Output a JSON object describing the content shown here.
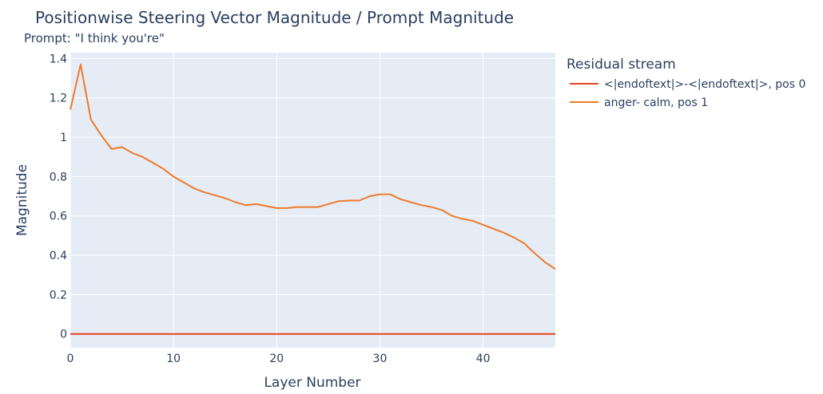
{
  "chart_data": {
    "type": "line",
    "title": "Positionwise Steering Vector Magnitude / Prompt Magnitude",
    "subtitle": "Prompt: \"I think you're\"",
    "xlabel": "Layer Number",
    "ylabel": "Magnitude",
    "xlim": [
      0,
      47
    ],
    "ylim": [
      -0.07,
      1.43
    ],
    "x_ticks": [
      0,
      10,
      20,
      30,
      40
    ],
    "y_ticks": [
      0,
      0.2,
      0.4,
      0.6,
      0.8,
      1,
      1.2,
      1.4
    ],
    "x_tick_labels": [
      "0",
      "10",
      "20",
      "30",
      "40"
    ],
    "y_tick_labels": [
      "0",
      "0.2",
      "0.4",
      "0.6",
      "0.8",
      "1",
      "1.2",
      "1.4"
    ],
    "grid": true,
    "legend": {
      "title": "Residual stream",
      "placement": "right"
    },
    "series": [
      {
        "name": "<|endoftext|>-<|endoftext|>, pos 0",
        "color": "#e3441f",
        "x": [
          0,
          1,
          2,
          3,
          4,
          5,
          6,
          7,
          8,
          9,
          10,
          11,
          12,
          13,
          14,
          15,
          16,
          17,
          18,
          19,
          20,
          21,
          22,
          23,
          24,
          25,
          26,
          27,
          28,
          29,
          30,
          31,
          32,
          33,
          34,
          35,
          36,
          37,
          38,
          39,
          40,
          41,
          42,
          43,
          44,
          45,
          46,
          47
        ],
        "values": [
          0,
          0,
          0,
          0,
          0,
          0,
          0,
          0,
          0,
          0,
          0,
          0,
          0,
          0,
          0,
          0,
          0,
          0,
          0,
          0,
          0,
          0,
          0,
          0,
          0,
          0,
          0,
          0,
          0,
          0,
          0,
          0,
          0,
          0,
          0,
          0,
          0,
          0,
          0,
          0,
          0,
          0,
          0,
          0,
          0,
          0,
          0,
          0
        ]
      },
      {
        "name": " anger- calm, pos 1",
        "color": "#f07a2a",
        "x": [
          0,
          1,
          2,
          3,
          4,
          5,
          6,
          7,
          8,
          9,
          10,
          11,
          12,
          13,
          14,
          15,
          16,
          17,
          18,
          19,
          20,
          21,
          22,
          23,
          24,
          25,
          26,
          27,
          28,
          29,
          30,
          31,
          32,
          33,
          34,
          35,
          36,
          37,
          38,
          39,
          40,
          41,
          42,
          43,
          44,
          45,
          46,
          47
        ],
        "values": [
          1.14,
          1.37,
          1.09,
          1.01,
          0.94,
          0.95,
          0.92,
          0.9,
          0.87,
          0.84,
          0.8,
          0.77,
          0.74,
          0.72,
          0.705,
          0.69,
          0.67,
          0.655,
          0.66,
          0.65,
          0.64,
          0.64,
          0.645,
          0.645,
          0.645,
          0.66,
          0.675,
          0.678,
          0.678,
          0.7,
          0.71,
          0.71,
          0.685,
          0.67,
          0.655,
          0.645,
          0.63,
          0.6,
          0.585,
          0.575,
          0.555,
          0.535,
          0.515,
          0.49,
          0.46,
          0.41,
          0.365,
          0.33
        ]
      }
    ]
  }
}
